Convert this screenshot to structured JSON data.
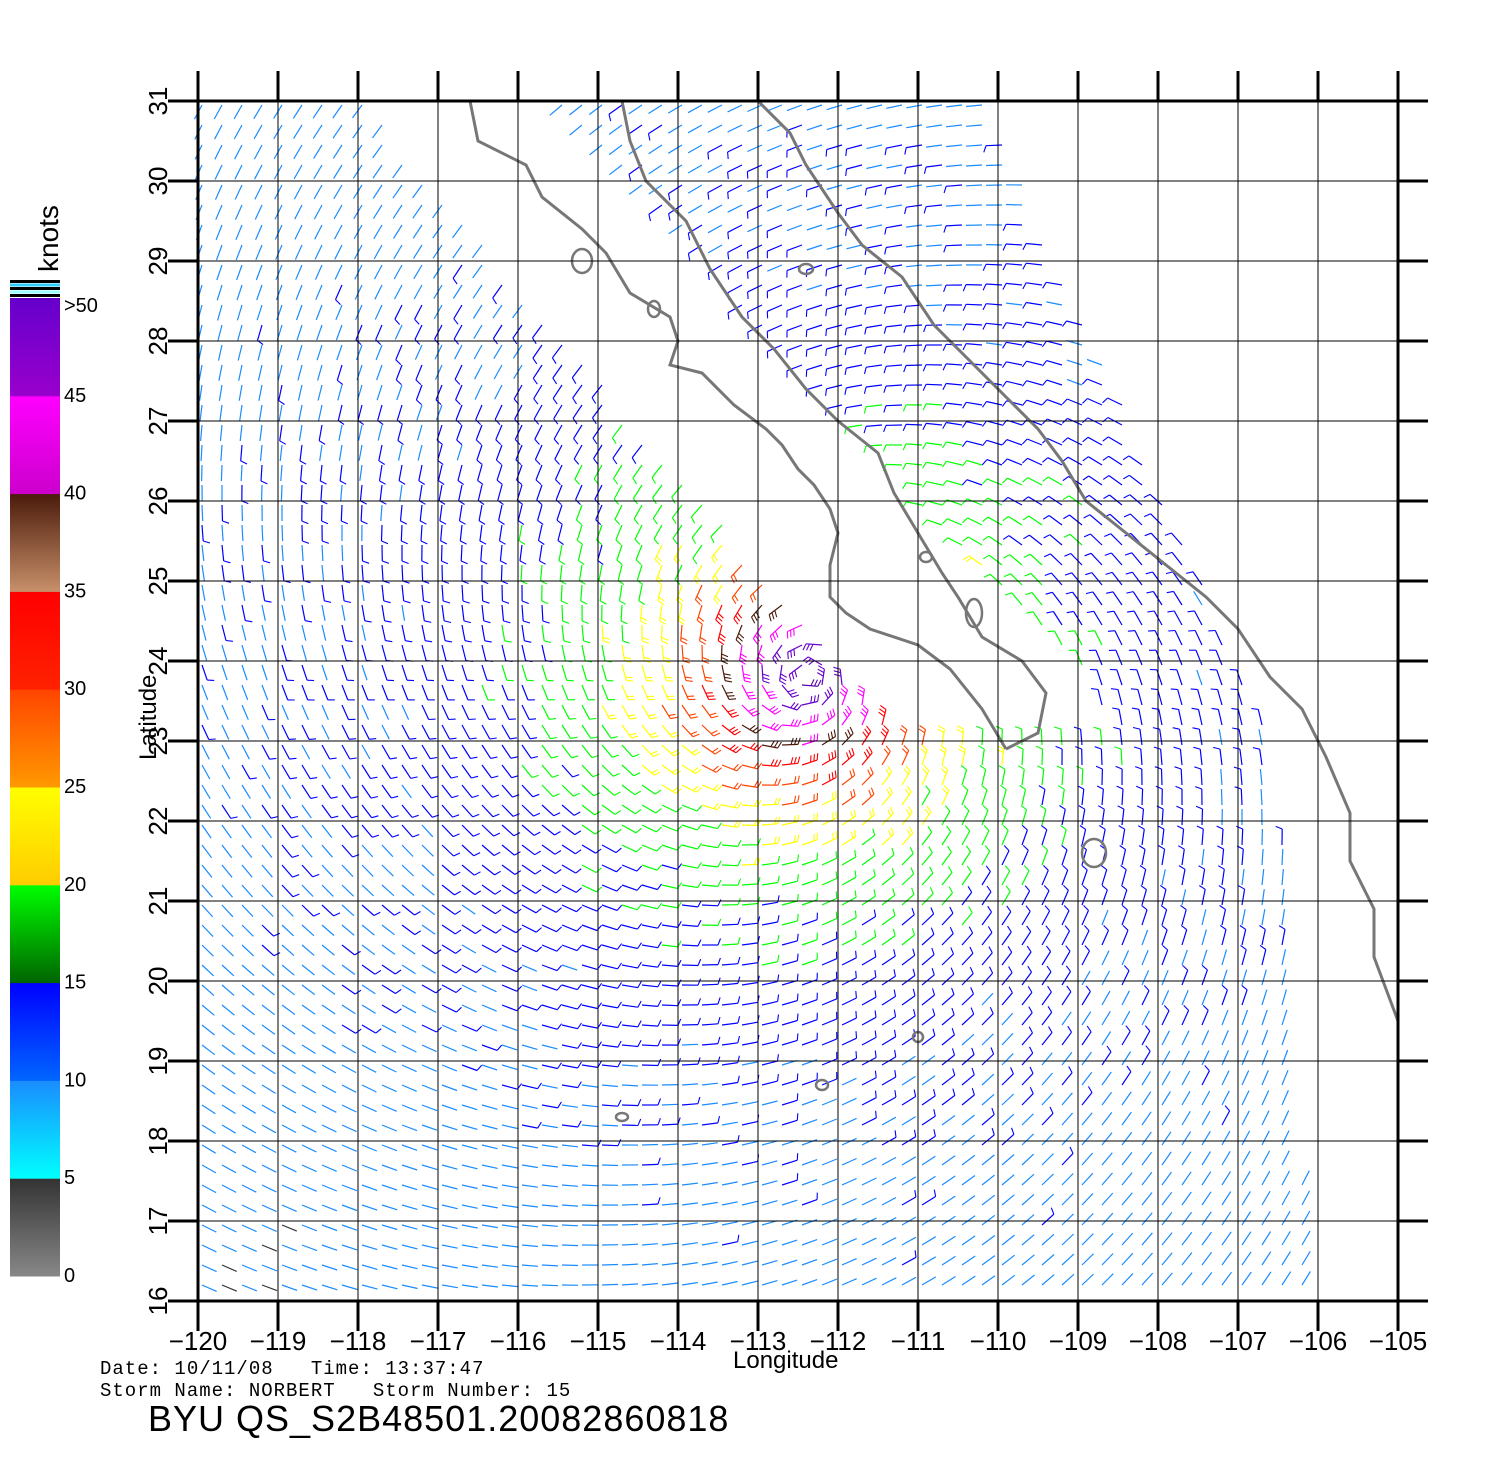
{
  "colorbar": {
    "unit": "knots",
    "labels": [
      ">50",
      "45",
      "40",
      "35",
      "30",
      "25",
      "20",
      "15",
      "10",
      "5",
      "0"
    ],
    "segments": [
      {
        "from": 0,
        "to": 5,
        "top": "#333333",
        "bottom": "#888888"
      },
      {
        "from": 5,
        "to": 10,
        "top": "#1a8cff",
        "bottom": "#00ffff"
      },
      {
        "from": 10,
        "to": 15,
        "top": "#0000ff",
        "bottom": "#0066ff"
      },
      {
        "from": 15,
        "to": 20,
        "top": "#00ff00",
        "bottom": "#006400"
      },
      {
        "from": 20,
        "to": 25,
        "top": "#ffff00",
        "bottom": "#ffcc00"
      },
      {
        "from": 25,
        "to": 30,
        "top": "#ff4400",
        "bottom": "#ff9900"
      },
      {
        "from": 30,
        "to": 35,
        "top": "#ff0000",
        "bottom": "#ff2200"
      },
      {
        "from": 35,
        "to": 40,
        "top": "#4a1a0a",
        "bottom": "#c8906a"
      },
      {
        "from": 40,
        "to": 45,
        "top": "#ff00ff",
        "bottom": "#cc00cc"
      },
      {
        "from": 45,
        "to": 50,
        "top": "#6600cc",
        "bottom": "#9900cc"
      }
    ]
  },
  "map": {
    "lon_range": [
      -120,
      -105
    ],
    "lat_range": [
      16,
      31
    ],
    "lon_ticks": [
      "-120",
      "-119",
      "-118",
      "-117",
      "-116",
      "-115",
      "-114",
      "-113",
      "-112",
      "-111",
      "-110",
      "-109",
      "-108",
      "-107",
      "-106",
      "-105"
    ],
    "lat_ticks": [
      "16",
      "17",
      "18",
      "19",
      "20",
      "21",
      "22",
      "23",
      "24",
      "25",
      "26",
      "27",
      "28",
      "29",
      "30",
      "31"
    ],
    "xlabel": "Longitude",
    "ylabel": "Latitude",
    "storm_center": {
      "lon": -112.4,
      "lat": 23.8
    },
    "coastline_color": "#777777"
  },
  "info": {
    "date_line": "Date: 10/11/08   Time: 13:37:47",
    "storm_line": "Storm Name: NORBERT   Storm Number: 15",
    "product": "BYU QS_S2B48501.20082860818"
  }
}
